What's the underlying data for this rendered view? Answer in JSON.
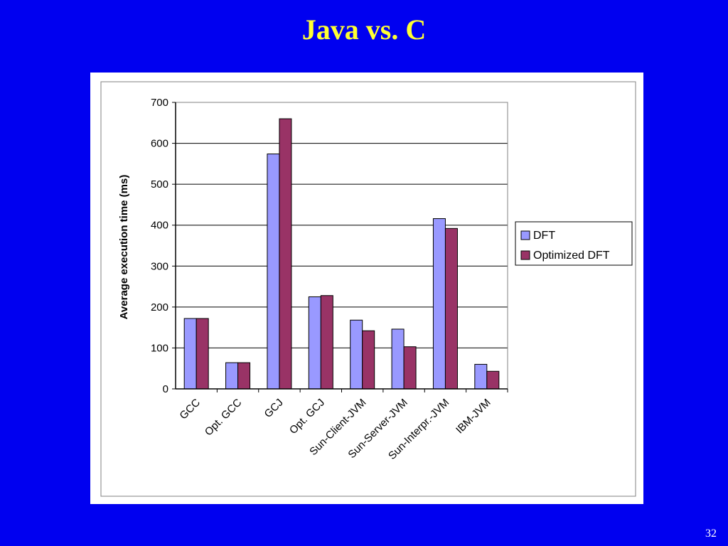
{
  "slide": {
    "title": "Java vs. C",
    "page_number": "32"
  },
  "colors": {
    "background": "#0000f0",
    "title": "#ffff33",
    "dft": "#9999ff",
    "optimized_dft": "#993366"
  },
  "chart_data": {
    "type": "bar",
    "title": "",
    "xlabel": "",
    "ylabel": "Average execution time (ms)",
    "ylim": [
      0,
      700
    ],
    "yticks": [
      0,
      100,
      200,
      300,
      400,
      500,
      600,
      700
    ],
    "grid": true,
    "legend_position": "right",
    "categories": [
      "GCC",
      "Opt. GCC",
      "GCJ",
      "Opt. GCJ",
      "Sun-Client-JVM",
      "Sun-Server-JVM",
      "Sun-Interpr.-JVM",
      "IBM-JVM"
    ],
    "series": [
      {
        "name": "DFT",
        "values": [
          172,
          64,
          574,
          225,
          168,
          146,
          416,
          60
        ]
      },
      {
        "name": "Optimized DFT",
        "values": [
          172,
          64,
          660,
          228,
          142,
          103,
          392,
          43
        ]
      }
    ]
  }
}
